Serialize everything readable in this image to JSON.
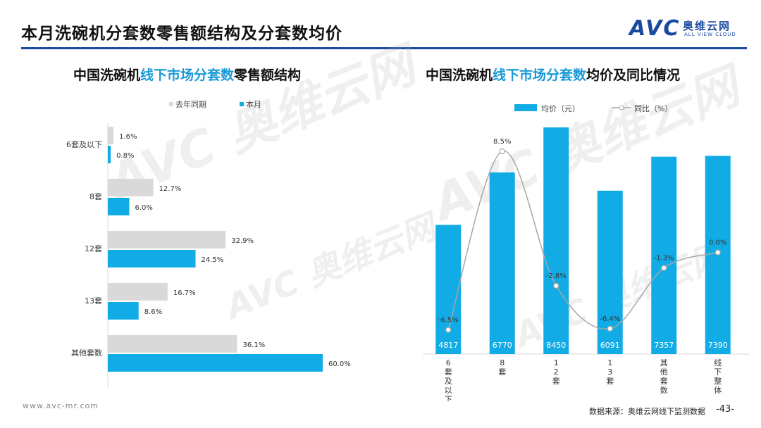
{
  "page": {
    "title": "本月洗碗机分套数零售额结构及分套数均价",
    "logo_text": "AVC",
    "logo_cn": "奥维云网",
    "logo_en": "ALL VIEW CLOUD",
    "footer_url": "www.avc-mr.com",
    "footer_source": "数据来源：奥维云网线下监测数据",
    "page_number": "-43-",
    "watermark": "AVC 奥维云网"
  },
  "colors": {
    "blue": "#11ACE6",
    "gray": "#D9D9D9",
    "accent": "#1A9AD6",
    "brand": "#1A4AA0"
  },
  "chart_data": [
    {
      "type": "bar",
      "orientation": "horizontal",
      "title": {
        "prefix": "中国洗碗机",
        "highlight": "线下市场分套数",
        "suffix": "零售额结构"
      },
      "categories": [
        "6套及以下",
        "8套",
        "12套",
        "13套",
        "其他套数"
      ],
      "series": [
        {
          "name": "去年同期",
          "values": [
            1.6,
            12.7,
            32.9,
            16.7,
            36.1
          ],
          "labels": [
            "1.6%",
            "12.7%",
            "32.9%",
            "16.7%",
            "36.1%"
          ],
          "color": "#D9D9D9"
        },
        {
          "name": "本月",
          "values": [
            0.8,
            6.0,
            24.5,
            8.6,
            60.0
          ],
          "labels": [
            "0.8%",
            "6.0%",
            "24.5%",
            "8.6%",
            "60.0%"
          ],
          "color": "#11ACE6"
        }
      ],
      "xlim": [
        0,
        60
      ],
      "unit": "%"
    },
    {
      "type": "bar+line",
      "title": {
        "prefix": "中国洗碗机",
        "highlight": "线下市场分套数",
        "suffix": "均价及同比情况"
      },
      "categories": [
        "6套及以下",
        "8套",
        "12套",
        "13套",
        "其他套数",
        "线下整体"
      ],
      "bar_series": {
        "name": "均价（元）",
        "values": [
          4817,
          6770,
          8450,
          6091,
          7357,
          7390
        ],
        "labels": [
          "4817",
          "6770",
          "8450",
          "6091",
          "7357",
          "7390"
        ]
      },
      "line_series": {
        "name": "同比（%）",
        "values": [
          -6.5,
          8.5,
          -2.8,
          -6.4,
          -1.3,
          0.0
        ],
        "labels": [
          "-6.5%",
          "8.5%",
          "-2.8%",
          "-6.4%",
          "-1.3%",
          "0.0%"
        ]
      },
      "bar_ylim": [
        0,
        9000
      ],
      "line_ylim": [
        -7,
        9.5
      ]
    }
  ]
}
